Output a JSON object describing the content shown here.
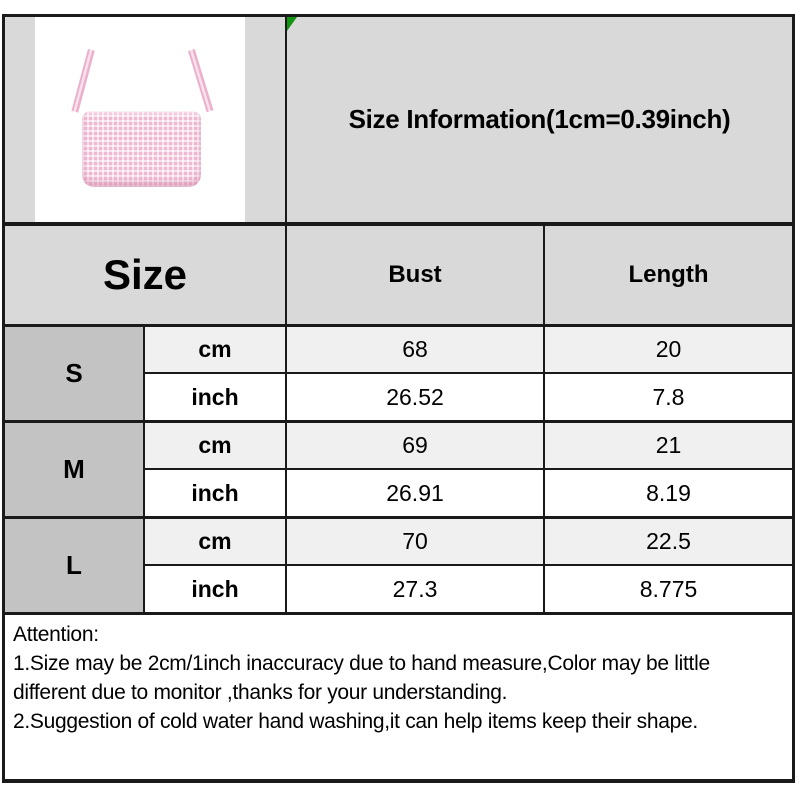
{
  "header": {
    "title": "Size Information(1cm=0.39inch)"
  },
  "product_image": {
    "label": "pink-gingham-camisole-photo"
  },
  "size_table": {
    "size_header": "Size",
    "columns": {
      "bust": "Bust",
      "length": "Length"
    },
    "units": {
      "cm": "cm",
      "inch": "inch"
    },
    "rows": [
      {
        "size": "S",
        "cm": {
          "bust": "68",
          "length": "20"
        },
        "inch": {
          "bust": "26.52",
          "length": "7.8"
        }
      },
      {
        "size": "M",
        "cm": {
          "bust": "69",
          "length": "21"
        },
        "inch": {
          "bust": "26.91",
          "length": "8.19"
        }
      },
      {
        "size": "L",
        "cm": {
          "bust": "70",
          "length": "22.5"
        },
        "inch": {
          "bust": "27.3",
          "length": "8.775"
        }
      }
    ]
  },
  "attention": {
    "title": "Attention:",
    "line1": "1.Size may be 2cm/1inch inaccuracy due to hand measure,Color may be little",
    "line2": "different due to monitor ,thanks for your understanding.",
    "line3": "2.Suggestion of cold water hand washing,it can help items keep their shape."
  },
  "colors": {
    "header_bg": "#d9d9d9",
    "size_label_bg": "#c3c3c3",
    "cm_row_bg": "#f0f0f0",
    "inch_row_bg": "#ffffff",
    "grid_line": "#1a1a1a",
    "marker_green": "#149414",
    "camisole_pink": "#efb9d3"
  }
}
